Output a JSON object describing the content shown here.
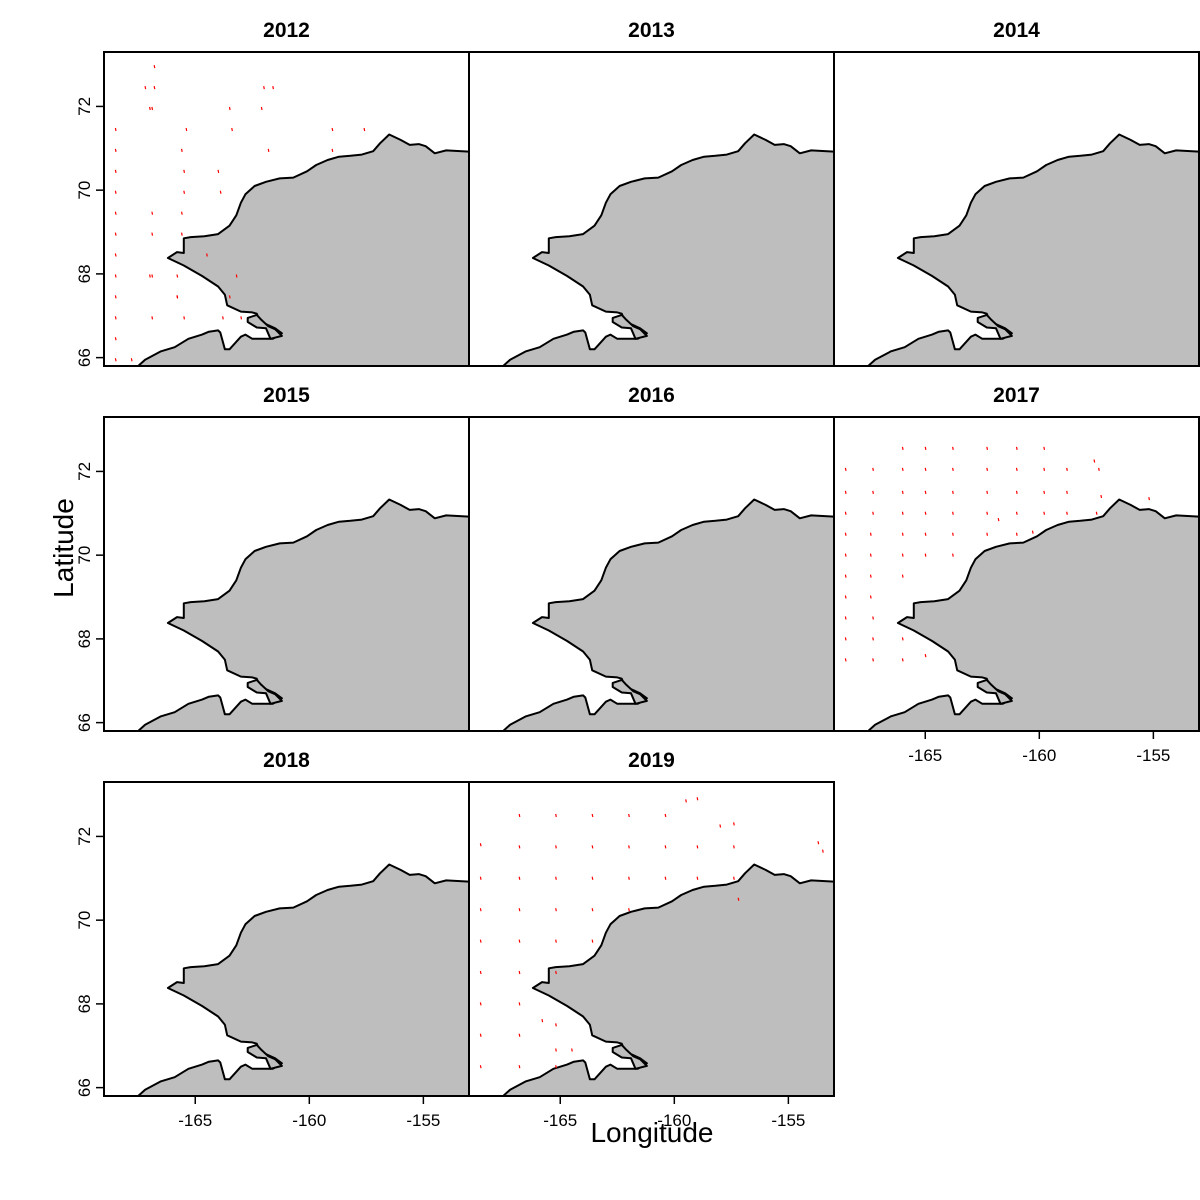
{
  "figure": {
    "xlabel": "Longitude",
    "ylabel": "Latitude"
  },
  "colors": {
    "land": "#bebebe",
    "coast": "#000000",
    "stations": "#ff0000",
    "frame": "#000000"
  },
  "chart_data": {
    "type": "scatter",
    "xlim": [
      -169.0,
      -153.0
    ],
    "ylim": [
      65.8,
      73.3
    ],
    "x_ticks": [
      -165,
      -160,
      -155
    ],
    "x_tick_labels": [
      "-165",
      "-160",
      "-155"
    ],
    "y_ticks": [
      66,
      68,
      70,
      72
    ],
    "y_tick_labels": [
      "66",
      "68",
      "70",
      "72"
    ],
    "grid": false,
    "land_fill": "grey",
    "coastline": {
      "mainland": [
        [
          -153.0,
          70.92
        ],
        [
          -154.0,
          70.95
        ],
        [
          -154.5,
          70.88
        ],
        [
          -154.9,
          71.05
        ],
        [
          -155.2,
          71.1
        ],
        [
          -155.6,
          71.08
        ],
        [
          -156.0,
          71.2
        ],
        [
          -156.5,
          71.33
        ],
        [
          -156.9,
          71.12
        ],
        [
          -157.2,
          70.93
        ],
        [
          -157.7,
          70.85
        ],
        [
          -158.2,
          70.82
        ],
        [
          -158.7,
          70.8
        ],
        [
          -159.2,
          70.72
        ],
        [
          -159.7,
          70.6
        ],
        [
          -160.1,
          70.45
        ],
        [
          -160.7,
          70.3
        ],
        [
          -161.3,
          70.28
        ],
        [
          -161.9,
          70.2
        ],
        [
          -162.4,
          70.1
        ],
        [
          -162.8,
          69.9
        ],
        [
          -163.0,
          69.7
        ],
        [
          -163.2,
          69.4
        ],
        [
          -163.5,
          69.15
        ],
        [
          -164.0,
          68.95
        ],
        [
          -164.6,
          68.9
        ],
        [
          -165.2,
          68.88
        ],
        [
          -165.5,
          68.85
        ],
        [
          -165.5,
          68.5
        ],
        [
          -165.8,
          68.52
        ],
        [
          -166.2,
          68.38
        ],
        [
          -165.5,
          68.2
        ],
        [
          -164.7,
          67.95
        ],
        [
          -164.0,
          67.7
        ],
        [
          -163.7,
          67.5
        ],
        [
          -163.6,
          67.25
        ],
        [
          -163.0,
          67.1
        ],
        [
          -162.5,
          67.08
        ],
        [
          -162.3,
          67.05
        ],
        [
          -162.2,
          66.9
        ],
        [
          -161.9,
          66.8
        ],
        [
          -161.5,
          66.7
        ],
        [
          -161.2,
          66.58
        ],
        [
          -161.6,
          66.45
        ],
        [
          -162.0,
          66.45
        ],
        [
          -162.5,
          66.45
        ],
        [
          -162.8,
          66.55
        ],
        [
          -163.0,
          66.5
        ],
        [
          -163.5,
          66.2
        ],
        [
          -163.7,
          66.2
        ],
        [
          -163.9,
          66.6
        ],
        [
          -164.0,
          66.65
        ],
        [
          -164.4,
          66.62
        ],
        [
          -164.7,
          66.55
        ],
        [
          -165.3,
          66.45
        ],
        [
          -165.9,
          66.25
        ],
        [
          -166.5,
          66.15
        ],
        [
          -167.2,
          65.95
        ],
        [
          -167.5,
          65.8
        ],
        [
          -153.0,
          65.8
        ]
      ],
      "inlet": [
        [
          -162.7,
          66.95
        ],
        [
          -162.3,
          67.02
        ],
        [
          -162.1,
          66.9
        ],
        [
          -161.8,
          66.75
        ],
        [
          -161.5,
          66.68
        ],
        [
          -161.2,
          66.52
        ],
        [
          -161.7,
          66.45
        ],
        [
          -161.9,
          66.7
        ],
        [
          -162.3,
          66.72
        ],
        [
          -162.7,
          66.85
        ]
      ]
    },
    "series": [
      {
        "panel": "2012",
        "x": [
          -166.8,
          -168.5,
          -168.5,
          -168.5,
          -168.5,
          -168.5,
          -168.5,
          -168.5,
          -168.5,
          -168.5,
          -168.5,
          -168.5,
          -168.5,
          -167.8,
          -167.2,
          -167.0,
          -166.9,
          -165.4,
          -165.6,
          -163.5,
          -163.4,
          -162.1,
          -162.0,
          -161.8,
          -159.0,
          -157.6,
          -159.0,
          -165.5,
          -165.5,
          -165.6,
          -164.0,
          -163.9,
          -166.9,
          -166.9,
          -165.6,
          -164.5,
          -167.0,
          -165.8,
          -165.5,
          -163.8,
          -163.2,
          -161.6,
          -166.8,
          -165.8,
          -166.9,
          -166.9,
          -165.8,
          -163.5,
          -163.0
        ],
        "y": [
          72.95,
          71.45,
          70.95,
          70.45,
          69.95,
          69.45,
          68.95,
          68.45,
          67.95,
          67.45,
          66.95,
          66.45,
          65.95,
          65.95,
          72.45,
          71.95,
          71.95,
          71.45,
          70.95,
          71.95,
          71.45,
          71.95,
          72.45,
          70.95,
          71.45,
          71.45,
          70.95,
          70.45,
          69.95,
          69.45,
          70.45,
          69.95,
          69.45,
          68.95,
          68.95,
          68.45,
          67.95,
          67.45,
          66.95,
          66.95,
          67.95,
          72.45,
          72.45,
          67.45,
          67.95,
          66.95,
          67.95,
          67.45,
          66.95
        ]
      },
      {
        "panel": "2013",
        "x": [],
        "y": []
      },
      {
        "panel": "2014",
        "x": [],
        "y": []
      },
      {
        "panel": "2015",
        "x": [],
        "y": []
      },
      {
        "panel": "2016",
        "x": [],
        "y": []
      },
      {
        "panel": "2017",
        "x": [
          -168.5,
          -168.5,
          -168.5,
          -168.5,
          -168.5,
          -168.5,
          -168.5,
          -168.5,
          -168.5,
          -168.5,
          -167.3,
          -167.3,
          -167.3,
          -167.4,
          -167.4,
          -167.4,
          -167.4,
          -167.3,
          -167.3,
          -167.3,
          -166.0,
          -166.0,
          -166.0,
          -166.0,
          -166.0,
          -166.0,
          -166.0,
          -166.0,
          -166.0,
          -165.0,
          -165.0,
          -165.0,
          -165.0,
          -165.0,
          -165.0,
          -165.0,
          -163.8,
          -163.8,
          -163.8,
          -163.8,
          -163.8,
          -163.8,
          -162.3,
          -162.3,
          -162.3,
          -162.3,
          -162.3,
          -161.0,
          -161.0,
          -161.0,
          -161.0,
          -161.0,
          -159.8,
          -159.8,
          -159.8,
          -159.8,
          -158.8,
          -158.8,
          -158.8,
          -157.6,
          -157.4,
          -157.3,
          -155.2,
          -157.5,
          -161.8,
          -160.3
        ],
        "y": [
          72.05,
          71.5,
          71.0,
          70.5,
          70.0,
          69.5,
          69.0,
          68.5,
          68.0,
          67.5,
          72.05,
          71.5,
          71.0,
          70.5,
          70.0,
          69.5,
          69.0,
          68.5,
          68.0,
          67.5,
          72.55,
          72.05,
          71.5,
          71.0,
          70.5,
          70.0,
          69.5,
          68.0,
          67.5,
          72.55,
          72.05,
          71.5,
          71.0,
          70.5,
          70.0,
          67.6,
          72.55,
          72.05,
          71.5,
          71.0,
          70.5,
          70.0,
          72.55,
          72.05,
          71.5,
          71.0,
          70.5,
          72.55,
          72.05,
          71.5,
          71.0,
          70.5,
          72.55,
          72.05,
          71.5,
          71.0,
          72.05,
          71.5,
          71.0,
          72.25,
          72.05,
          71.4,
          71.35,
          71.0,
          70.85,
          70.55
        ]
      },
      {
        "panel": "2018",
        "x": [],
        "y": []
      },
      {
        "panel": "2019",
        "x": [
          -168.5,
          -168.5,
          -168.5,
          -168.5,
          -168.5,
          -168.5,
          -168.5,
          -168.5,
          -166.8,
          -166.8,
          -166.8,
          -166.8,
          -166.8,
          -166.8,
          -166.8,
          -166.8,
          -166.8,
          -165.2,
          -165.2,
          -165.2,
          -165.2,
          -165.2,
          -165.2,
          -165.2,
          -165.2,
          -165.2,
          -163.6,
          -163.6,
          -163.6,
          -163.6,
          -163.6,
          -162.0,
          -162.0,
          -162.0,
          -162.0,
          -160.4,
          -160.4,
          -160.4,
          -159.0,
          -159.0,
          -159.0,
          -157.4,
          -157.4,
          -157.4,
          -157.2,
          -153.7,
          -153.5,
          -159.5,
          -158.0,
          -165.8,
          -164.5
        ],
        "y": [
          71.8,
          71.0,
          70.25,
          69.5,
          68.75,
          68.0,
          67.25,
          66.5,
          72.5,
          71.75,
          71.0,
          70.25,
          69.5,
          68.75,
          68.0,
          67.25,
          66.5,
          72.5,
          71.75,
          71.0,
          70.25,
          69.5,
          68.75,
          67.5,
          66.9,
          66.5,
          72.5,
          71.75,
          71.0,
          70.25,
          69.5,
          72.5,
          71.75,
          71.0,
          70.25,
          72.5,
          71.75,
          71.0,
          72.9,
          71.75,
          71.0,
          72.3,
          71.75,
          71.0,
          70.5,
          71.85,
          71.65,
          72.85,
          72.25,
          67.6,
          66.9
        ]
      }
    ]
  }
}
